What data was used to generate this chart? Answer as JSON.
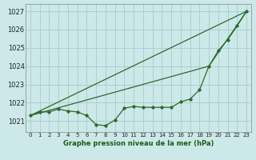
{
  "title": "Graphe pression niveau de la mer (hPa)",
  "bg_color": "#cce8e8",
  "grid_color": "#aacccc",
  "line_color": "#2d6a2d",
  "x_labels": [
    "0",
    "1",
    "2",
    "3",
    "4",
    "5",
    "6",
    "7",
    "8",
    "9",
    "10",
    "11",
    "12",
    "13",
    "14",
    "15",
    "16",
    "17",
    "18",
    "19",
    "20",
    "21",
    "22",
    "23"
  ],
  "ylim": [
    1020.4,
    1027.4
  ],
  "yticks": [
    1021,
    1022,
    1023,
    1024,
    1025,
    1026,
    1027
  ],
  "pressure_data": [
    1021.3,
    1021.5,
    1021.5,
    1021.65,
    1021.55,
    1021.5,
    1021.3,
    1020.8,
    1020.75,
    1021.05,
    1021.7,
    1021.8,
    1021.75,
    1021.75,
    1021.75,
    1021.75,
    1022.05,
    1022.2,
    1022.7,
    1024.0,
    1024.85,
    1025.45,
    1026.2,
    1027.0
  ],
  "straight_lines": [
    {
      "x": [
        0,
        23
      ],
      "y": [
        1021.3,
        1027.0
      ]
    },
    {
      "x": [
        0,
        19
      ],
      "y": [
        1021.3,
        1024.0
      ]
    },
    {
      "x": [
        19,
        23
      ],
      "y": [
        1024.0,
        1027.0
      ]
    }
  ],
  "ylabel_fontsize": 6,
  "xlabel_fontsize": 6,
  "title_color": "#1a5c1a"
}
